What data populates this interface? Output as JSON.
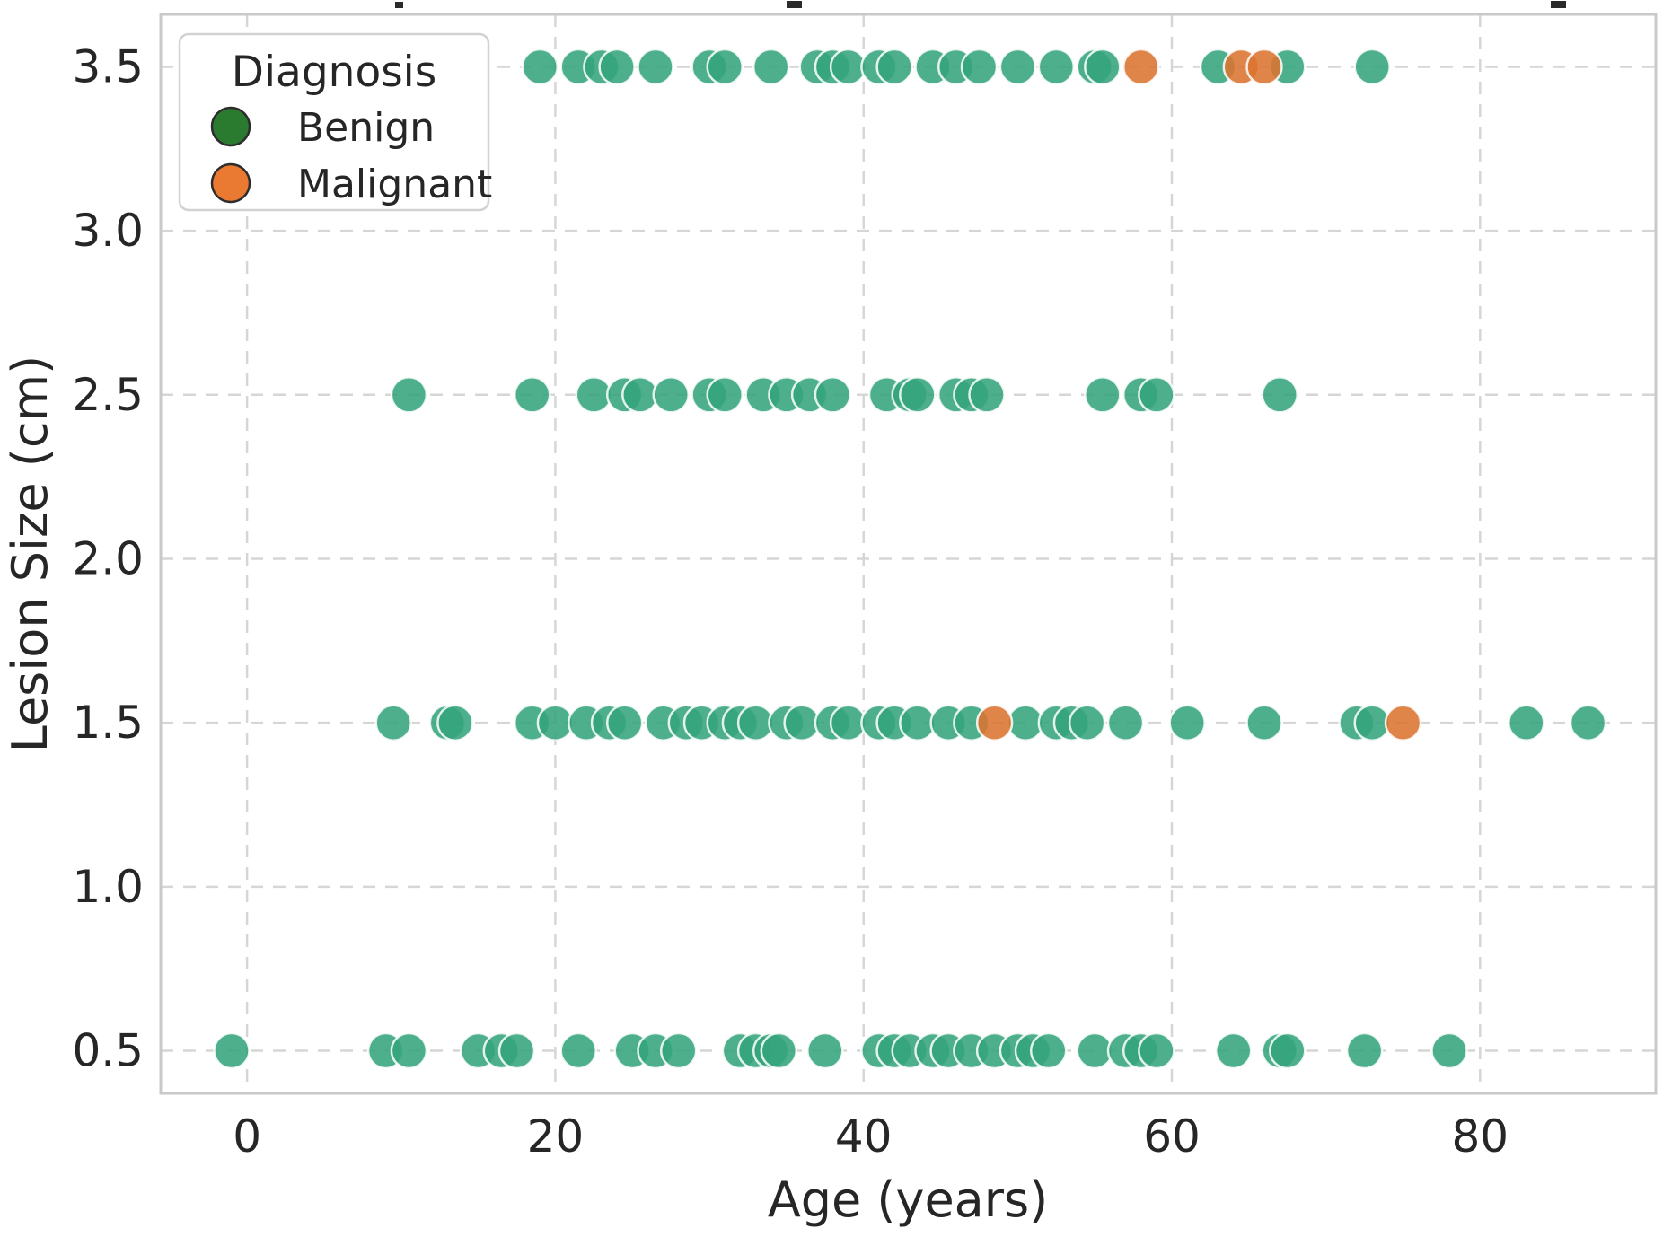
{
  "chart_data": {
    "type": "scatter",
    "title": "",
    "xlabel": "Age (years)",
    "ylabel": "Lesion Size (cm)",
    "xlim": [
      -5.6,
      91.4
    ],
    "ylim": [
      0.37,
      3.66
    ],
    "x_ticks": [
      0,
      20,
      40,
      60,
      80
    ],
    "x_tick_labels": [
      "0",
      "20",
      "40",
      "60",
      "80"
    ],
    "y_ticks": [
      0.5,
      1.0,
      1.5,
      2.0,
      2.5,
      3.0,
      3.5
    ],
    "y_tick_labels": [
      "0.5",
      "1.0",
      "1.5",
      "2.0",
      "2.5",
      "3.0",
      "3.5"
    ],
    "grid": "dashed",
    "legend": {
      "title": "Diagnosis",
      "position": "upper-left",
      "entries": [
        {
          "label": "Benign",
          "color": "#2a7b2f"
        },
        {
          "label": "Malignant",
          "color": "#ea7a31"
        }
      ]
    },
    "point_style": {
      "benign_fill": "#34a47b",
      "malignant_fill": "#dc7430",
      "edge_color": "rgba(255,255,255,0.85)",
      "radius_px": 19.5,
      "opacity": 0.88
    },
    "colors": {
      "grid": "#d6d6d6",
      "plot_border": "#c9c9c9",
      "text": "#262626"
    },
    "series": [
      {
        "name": "Benign",
        "points": [
          [
            -1,
            0.5
          ],
          [
            9,
            0.5
          ],
          [
            10.5,
            0.5
          ],
          [
            15,
            0.5
          ],
          [
            16.5,
            0.5
          ],
          [
            17.5,
            0.5
          ],
          [
            21.5,
            0.5
          ],
          [
            25,
            0.5
          ],
          [
            26.5,
            0.5
          ],
          [
            28,
            0.5
          ],
          [
            32,
            0.5
          ],
          [
            33,
            0.5
          ],
          [
            34,
            0.5
          ],
          [
            34.5,
            0.5
          ],
          [
            37.5,
            0.5
          ],
          [
            41,
            0.5
          ],
          [
            42,
            0.5
          ],
          [
            43,
            0.5
          ],
          [
            44.5,
            0.5
          ],
          [
            45.5,
            0.5
          ],
          [
            47,
            0.5
          ],
          [
            48.5,
            0.5
          ],
          [
            50,
            0.5
          ],
          [
            51,
            0.5
          ],
          [
            52,
            0.5
          ],
          [
            55,
            0.5
          ],
          [
            57,
            0.5
          ],
          [
            58,
            0.5
          ],
          [
            59,
            0.5
          ],
          [
            64,
            0.5
          ],
          [
            67,
            0.5
          ],
          [
            67.5,
            0.5
          ],
          [
            72.5,
            0.5
          ],
          [
            78,
            0.5
          ],
          [
            9.5,
            1.5
          ],
          [
            13,
            1.5
          ],
          [
            13.5,
            1.5
          ],
          [
            18.5,
            1.5
          ],
          [
            20,
            1.5
          ],
          [
            22,
            1.5
          ],
          [
            23.5,
            1.5
          ],
          [
            24.5,
            1.5
          ],
          [
            27,
            1.5
          ],
          [
            28.5,
            1.5
          ],
          [
            29.5,
            1.5
          ],
          [
            31,
            1.5
          ],
          [
            32,
            1.5
          ],
          [
            33,
            1.5
          ],
          [
            35,
            1.5
          ],
          [
            36,
            1.5
          ],
          [
            38,
            1.5
          ],
          [
            39,
            1.5
          ],
          [
            41,
            1.5
          ],
          [
            42,
            1.5
          ],
          [
            43.5,
            1.5
          ],
          [
            45.5,
            1.5
          ],
          [
            47,
            1.5
          ],
          [
            50.5,
            1.5
          ],
          [
            52.5,
            1.5
          ],
          [
            53.5,
            1.5
          ],
          [
            54.5,
            1.5
          ],
          [
            57,
            1.5
          ],
          [
            61,
            1.5
          ],
          [
            66,
            1.5
          ],
          [
            72,
            1.5
          ],
          [
            73,
            1.5
          ],
          [
            83,
            1.5
          ],
          [
            87,
            1.5
          ],
          [
            10.5,
            2.5
          ],
          [
            18.5,
            2.5
          ],
          [
            22.5,
            2.5
          ],
          [
            24.5,
            2.5
          ],
          [
            25.5,
            2.5
          ],
          [
            27.5,
            2.5
          ],
          [
            30,
            2.5
          ],
          [
            31,
            2.5
          ],
          [
            33.5,
            2.5
          ],
          [
            35,
            2.5
          ],
          [
            36.5,
            2.5
          ],
          [
            38,
            2.5
          ],
          [
            41.5,
            2.5
          ],
          [
            43,
            2.5
          ],
          [
            43.5,
            2.5
          ],
          [
            46,
            2.5
          ],
          [
            47,
            2.5
          ],
          [
            48,
            2.5
          ],
          [
            55.5,
            2.5
          ],
          [
            58,
            2.5
          ],
          [
            59,
            2.5
          ],
          [
            67,
            2.5
          ],
          [
            19,
            3.5
          ],
          [
            21.5,
            3.5
          ],
          [
            23,
            3.5
          ],
          [
            24,
            3.5
          ],
          [
            26.5,
            3.5
          ],
          [
            30,
            3.5
          ],
          [
            31,
            3.5
          ],
          [
            34,
            3.5
          ],
          [
            37,
            3.5
          ],
          [
            38,
            3.5
          ],
          [
            39,
            3.5
          ],
          [
            41,
            3.5
          ],
          [
            42,
            3.5
          ],
          [
            44.5,
            3.5
          ],
          [
            46,
            3.5
          ],
          [
            47.5,
            3.5
          ],
          [
            50,
            3.5
          ],
          [
            52.5,
            3.5
          ],
          [
            55,
            3.5
          ],
          [
            55.5,
            3.5
          ],
          [
            63,
            3.5
          ],
          [
            67.5,
            3.5
          ],
          [
            73,
            3.5
          ]
        ]
      },
      {
        "name": "Malignant",
        "points": [
          [
            48.5,
            1.5
          ],
          [
            75,
            1.5
          ],
          [
            58,
            3.5
          ],
          [
            64.5,
            3.5
          ],
          [
            66,
            3.5
          ]
        ]
      }
    ]
  }
}
